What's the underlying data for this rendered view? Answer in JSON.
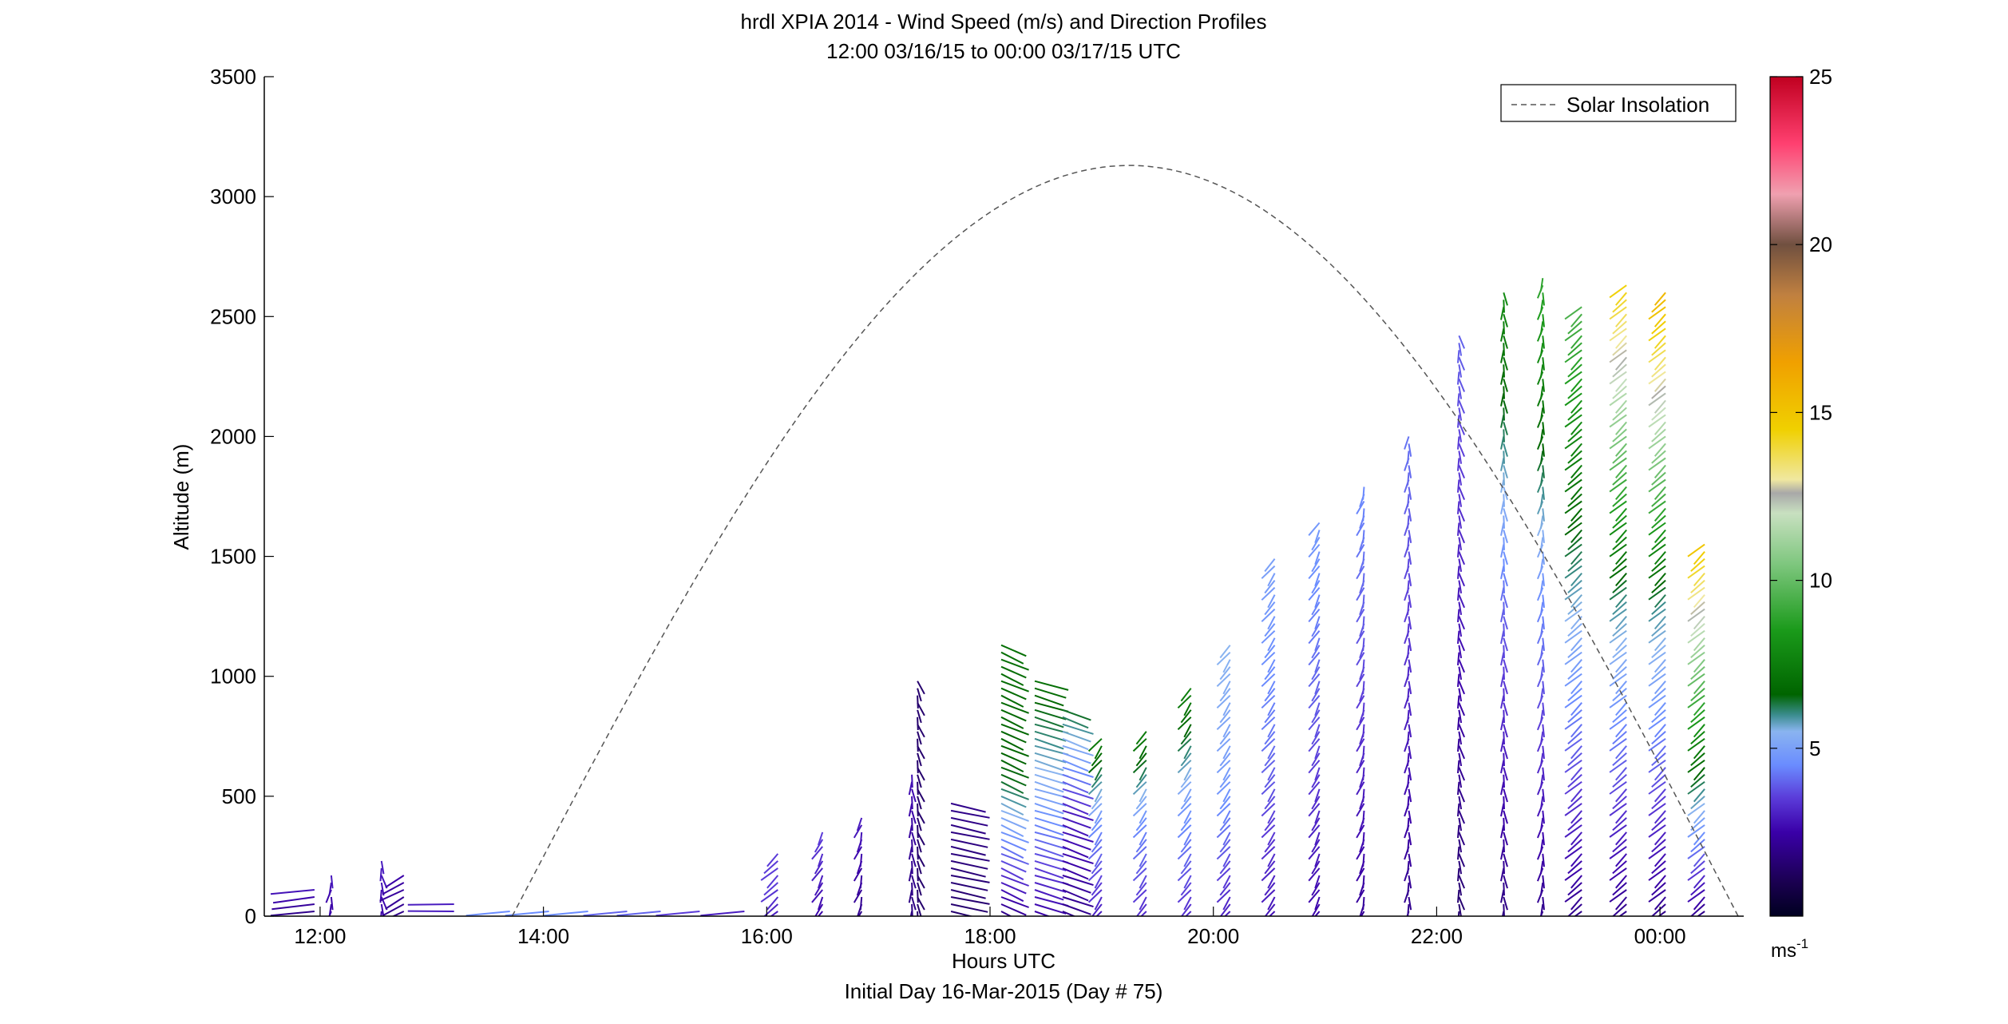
{
  "chart_data": {
    "type": "wind-barb-profile",
    "title": "hrdl XPIA 2014 - Wind Speed (m/s) and Direction Profiles",
    "subtitle": "12:00 03/16/15 to 00:00 03/17/15  UTC",
    "xlabel": "Hours UTC",
    "xlabel2": "Initial Day 16-Mar-2015 (Day # 75)",
    "ylabel": "Altitude (m)",
    "xlim": [
      11.5,
      24.75
    ],
    "ylim": [
      0,
      3500
    ],
    "xticks": [
      {
        "value": 12,
        "label": "12:00"
      },
      {
        "value": 14,
        "label": "14:00"
      },
      {
        "value": 16,
        "label": "16:00"
      },
      {
        "value": 18,
        "label": "18:00"
      },
      {
        "value": 20,
        "label": "20:00"
      },
      {
        "value": 22,
        "label": "22:00"
      },
      {
        "value": 24,
        "label": "00:00"
      }
    ],
    "yticks": [
      {
        "value": 0,
        "label": "0"
      },
      {
        "value": 500,
        "label": "500"
      },
      {
        "value": 1000,
        "label": "1000"
      },
      {
        "value": 1500,
        "label": "1500"
      },
      {
        "value": 2000,
        "label": "2000"
      },
      {
        "value": 2500,
        "label": "2500"
      },
      {
        "value": 3000,
        "label": "3000"
      },
      {
        "value": 3500,
        "label": "3500"
      }
    ],
    "legend": {
      "entry": "Solar Insolation",
      "placement": "top-right",
      "line_color": "#555555",
      "line_style": "dashed"
    },
    "solar_insolation": {
      "name": "Solar Insolation",
      "start_hour": 13.72,
      "peak_hour": 19.25,
      "end_hour": 24.7,
      "peak_altitude": 3130
    },
    "colorbar": {
      "min": 0,
      "max": 25,
      "ticks": [
        {
          "value": 5,
          "label": "5"
        },
        {
          "value": 10,
          "label": "10"
        },
        {
          "value": 15,
          "label": "15"
        },
        {
          "value": 20,
          "label": "20"
        },
        {
          "value": 25,
          "label": "25"
        }
      ],
      "unit_label": "ms",
      "unit_exponent": "-1",
      "stops": [
        {
          "value": 0,
          "color": "#000020"
        },
        {
          "value": 1,
          "color": "#1a0050"
        },
        {
          "value": 2.5,
          "color": "#3a00a8"
        },
        {
          "value": 3.5,
          "color": "#5a3ad8"
        },
        {
          "value": 4.5,
          "color": "#6a8cff"
        },
        {
          "value": 5.5,
          "color": "#8ab4f0"
        },
        {
          "value": 6,
          "color": "#3a8c8c"
        },
        {
          "value": 6.6,
          "color": "#006400"
        },
        {
          "value": 8.5,
          "color": "#1a9a1a"
        },
        {
          "value": 10.5,
          "color": "#7fc77f"
        },
        {
          "value": 12,
          "color": "#c8e0c0"
        },
        {
          "value": 12.6,
          "color": "#a8a8a8"
        },
        {
          "value": 13,
          "color": "#f0e8a0"
        },
        {
          "value": 14.5,
          "color": "#f0d000"
        },
        {
          "value": 16.5,
          "color": "#f0a000"
        },
        {
          "value": 18.5,
          "color": "#c08040"
        },
        {
          "value": 20,
          "color": "#705040"
        },
        {
          "value": 21.5,
          "color": "#f0a0b0"
        },
        {
          "value": 23,
          "color": "#ff4070"
        },
        {
          "value": 25,
          "color": "#c00020"
        }
      ]
    },
    "profiles": [
      {
        "hour": 11.95,
        "top": 130,
        "dir": 200,
        "speed": [
          2.0,
          2.5,
          3.0
        ]
      },
      {
        "hour": 12.1,
        "top": 180,
        "dir": 265,
        "speed": [
          2.5,
          2.5,
          3.0
        ]
      },
      {
        "hour": 12.55,
        "top": 230,
        "dir": 270,
        "speed": [
          2.5,
          3.0
        ]
      },
      {
        "hour": 12.75,
        "top": 170,
        "dir": 240,
        "speed": [
          2.0,
          2.5
        ]
      },
      {
        "hour": 13.2,
        "top": 60,
        "dir": 180,
        "speed": [
          3.0
        ]
      },
      {
        "hour": 13.7,
        "top": 40,
        "dir": 200,
        "speed": [
          4.5
        ]
      },
      {
        "hour": 14.05,
        "top": 20,
        "dir": 200,
        "speed": [
          4.5
        ]
      },
      {
        "hour": 14.4,
        "top": 20,
        "dir": 200,
        "speed": [
          4.5
        ]
      },
      {
        "hour": 14.75,
        "top": 20,
        "dir": 200,
        "speed": [
          4.0
        ]
      },
      {
        "hour": 15.05,
        "top": 20,
        "dir": 200,
        "speed": [
          4.0
        ]
      },
      {
        "hour": 15.4,
        "top": 30,
        "dir": 200,
        "speed": [
          3.5
        ]
      },
      {
        "hour": 15.8,
        "top": 40,
        "dir": 200,
        "speed": [
          3.0
        ]
      },
      {
        "hour": 16.1,
        "top": 260,
        "dir": 250,
        "speed": [
          3.0,
          3.5,
          3.5
        ]
      },
      {
        "hour": 16.5,
        "top": 350,
        "dir": 258,
        "speed": [
          2.5,
          3.0,
          3.5
        ]
      },
      {
        "hour": 16.85,
        "top": 430,
        "dir": 262,
        "speed": [
          2.0,
          2.5,
          3.0
        ]
      },
      {
        "hour": 17.3,
        "top": 600,
        "dir": 268,
        "speed": [
          1.8,
          2.2,
          2.8
        ]
      },
      {
        "hour": 17.35,
        "top": 980,
        "dir": 272,
        "speed": [
          1.5
        ]
      },
      {
        "hour": 17.65,
        "top": 480,
        "dir": 320,
        "speed": [
          1.5,
          2.0
        ]
      },
      {
        "hour": 18.1,
        "top": 1130,
        "dir": 300,
        "speed": [
          2.0,
          6.5,
          7.0
        ]
      },
      {
        "hour": 18.4,
        "top": 980,
        "dir": 310,
        "speed": [
          2.5,
          5.0,
          7.0
        ]
      },
      {
        "hour": 18.65,
        "top": 870,
        "dir": 305,
        "speed": [
          2.0,
          3.0,
          6.5
        ]
      },
      {
        "hour": 19.0,
        "top": 760,
        "dir": 255,
        "speed": [
          3.0,
          4.5,
          7.5
        ]
      },
      {
        "hour": 19.4,
        "top": 780,
        "dir": 255,
        "speed": [
          3.2,
          4.5,
          7.5
        ]
      },
      {
        "hour": 19.8,
        "top": 950,
        "dir": 255,
        "speed": [
          3.2,
          4.8,
          7.5
        ]
      },
      {
        "hour": 20.15,
        "top": 1140,
        "dir": 255,
        "speed": [
          3.0,
          4.8,
          5.5
        ]
      },
      {
        "hour": 20.55,
        "top": 1500,
        "dir": 255,
        "speed": [
          2.8,
          4.2,
          5.0
        ]
      },
      {
        "hour": 20.95,
        "top": 1640,
        "dir": 258,
        "speed": [
          2.5,
          3.8,
          4.8
        ]
      },
      {
        "hour": 21.35,
        "top": 1810,
        "dir": 262,
        "speed": [
          2.2,
          3.5,
          4.5
        ]
      },
      {
        "hour": 21.75,
        "top": 2000,
        "dir": 266,
        "speed": [
          2.0,
          3.2,
          4.2
        ]
      },
      {
        "hour": 22.2,
        "top": 2440,
        "dir": 270,
        "speed": [
          1.5,
          2.8,
          4.0
        ]
      },
      {
        "hour": 22.6,
        "top": 2620,
        "dir": 268,
        "speed": [
          1.8,
          4.0,
          8.0
        ]
      },
      {
        "hour": 22.95,
        "top": 2680,
        "dir": 265,
        "speed": [
          2.0,
          4.5,
          9.0
        ]
      },
      {
        "hour": 23.3,
        "top": 2550,
        "dir": 250,
        "speed": [
          2.0,
          5.5,
          9.5
        ]
      },
      {
        "hour": 23.7,
        "top": 2640,
        "dir": 250,
        "speed": [
          2.0,
          6.0,
          14.5
        ]
      },
      {
        "hour": 24.05,
        "top": 2600,
        "dir": 250,
        "speed": [
          2.0,
          6.0,
          15.5
        ]
      },
      {
        "hour": 24.4,
        "top": 1560,
        "dir": 250,
        "speed": [
          2.0,
          8.0,
          15.0
        ]
      }
    ]
  }
}
